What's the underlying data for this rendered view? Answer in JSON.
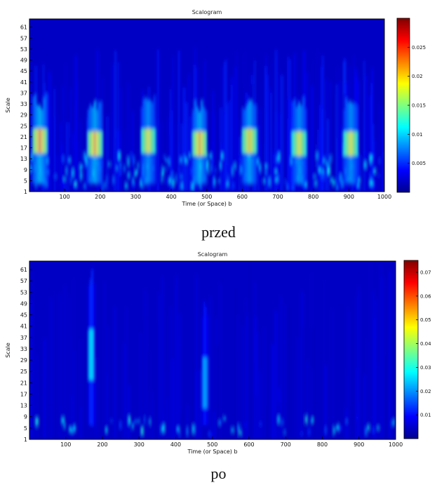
{
  "colors": {
    "background": "#ffffff",
    "colormap": [
      "#00008f",
      "#0000ff",
      "#00ffff",
      "#ffff00",
      "#ff0000",
      "#800000"
    ]
  },
  "chart_data": [
    {
      "type": "heatmap",
      "title": "Scalogram",
      "xlabel": "Time (or Space) b",
      "ylabel": "Scale",
      "caption": "przed",
      "xlim": [
        1,
        1000
      ],
      "ylim": [
        1,
        64
      ],
      "xticks": [
        "100",
        "200",
        "300",
        "400",
        "500",
        "600",
        "700",
        "800",
        "900",
        "1000"
      ],
      "yticks": [
        "1",
        "5",
        "9",
        "13",
        "17",
        "21",
        "25",
        "29",
        "33",
        "37",
        "41",
        "45",
        "49",
        "53",
        "57",
        "61"
      ],
      "colorbar": {
        "min": 0,
        "max": 0.03,
        "ticks": [
          "0.005",
          "0.01",
          "0.015",
          "0.02",
          "0.025"
        ]
      },
      "grid": false,
      "bursts": [
        {
          "x": 30,
          "scale": 19,
          "peak": 0.022
        },
        {
          "x": 185,
          "scale": 18,
          "peak": 0.021
        },
        {
          "x": 335,
          "scale": 19,
          "peak": 0.019
        },
        {
          "x": 480,
          "scale": 18,
          "peak": 0.021
        },
        {
          "x": 620,
          "scale": 19,
          "peak": 0.02
        },
        {
          "x": 760,
          "scale": 18,
          "peak": 0.019
        },
        {
          "x": 905,
          "scale": 18,
          "peak": 0.019
        }
      ]
    },
    {
      "type": "heatmap",
      "title": "Scalogram",
      "xlabel": "Time (or Space) b",
      "ylabel": "Scale",
      "caption": "po",
      "xlim": [
        1,
        1000
      ],
      "ylim": [
        1,
        64
      ],
      "xticks": [
        "100",
        "200",
        "300",
        "400",
        "500",
        "600",
        "700",
        "800",
        "900",
        "1000"
      ],
      "yticks": [
        "1",
        "5",
        "9",
        "13",
        "17",
        "21",
        "25",
        "29",
        "33",
        "37",
        "41",
        "45",
        "49",
        "53",
        "57",
        "61"
      ],
      "colorbar": {
        "min": 0,
        "max": 0.075,
        "ticks": [
          "0.01",
          "0.02",
          "0.03",
          "0.04",
          "0.05",
          "0.06",
          "0.07"
        ]
      },
      "grid": false,
      "bursts": [
        {
          "x": 170,
          "scale": 30,
          "peak": 0.03
        },
        {
          "x": 480,
          "scale": 20,
          "peak": 0.025
        }
      ]
    }
  ]
}
